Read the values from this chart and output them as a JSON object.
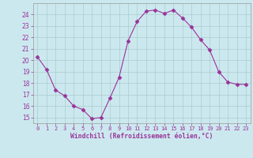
{
  "x": [
    0,
    1,
    2,
    3,
    4,
    5,
    6,
    7,
    8,
    9,
    10,
    11,
    12,
    13,
    14,
    15,
    16,
    17,
    18,
    19,
    20,
    21,
    22,
    23
  ],
  "y": [
    20.3,
    19.2,
    17.4,
    16.9,
    16.0,
    15.7,
    14.9,
    15.0,
    16.7,
    18.5,
    21.7,
    23.4,
    24.3,
    24.4,
    24.1,
    24.4,
    23.7,
    22.9,
    21.8,
    20.9,
    19.0,
    18.1,
    17.9,
    17.9
  ],
  "line_color": "#993399",
  "marker": "D",
  "marker_size": 2.5,
  "bg_color": "#cce8ef",
  "grid_color": "#aacccc",
  "xlabel": "Windchill (Refroidissement éolien,°C)",
  "xlabel_color": "#993399",
  "tick_color": "#993399",
  "ylim": [
    14.5,
    25.0
  ],
  "xlim": [
    -0.5,
    23.5
  ],
  "yticks": [
    15,
    16,
    17,
    18,
    19,
    20,
    21,
    22,
    23,
    24
  ],
  "xticks": [
    0,
    1,
    2,
    3,
    4,
    5,
    6,
    7,
    8,
    9,
    10,
    11,
    12,
    13,
    14,
    15,
    16,
    17,
    18,
    19,
    20,
    21,
    22,
    23
  ]
}
